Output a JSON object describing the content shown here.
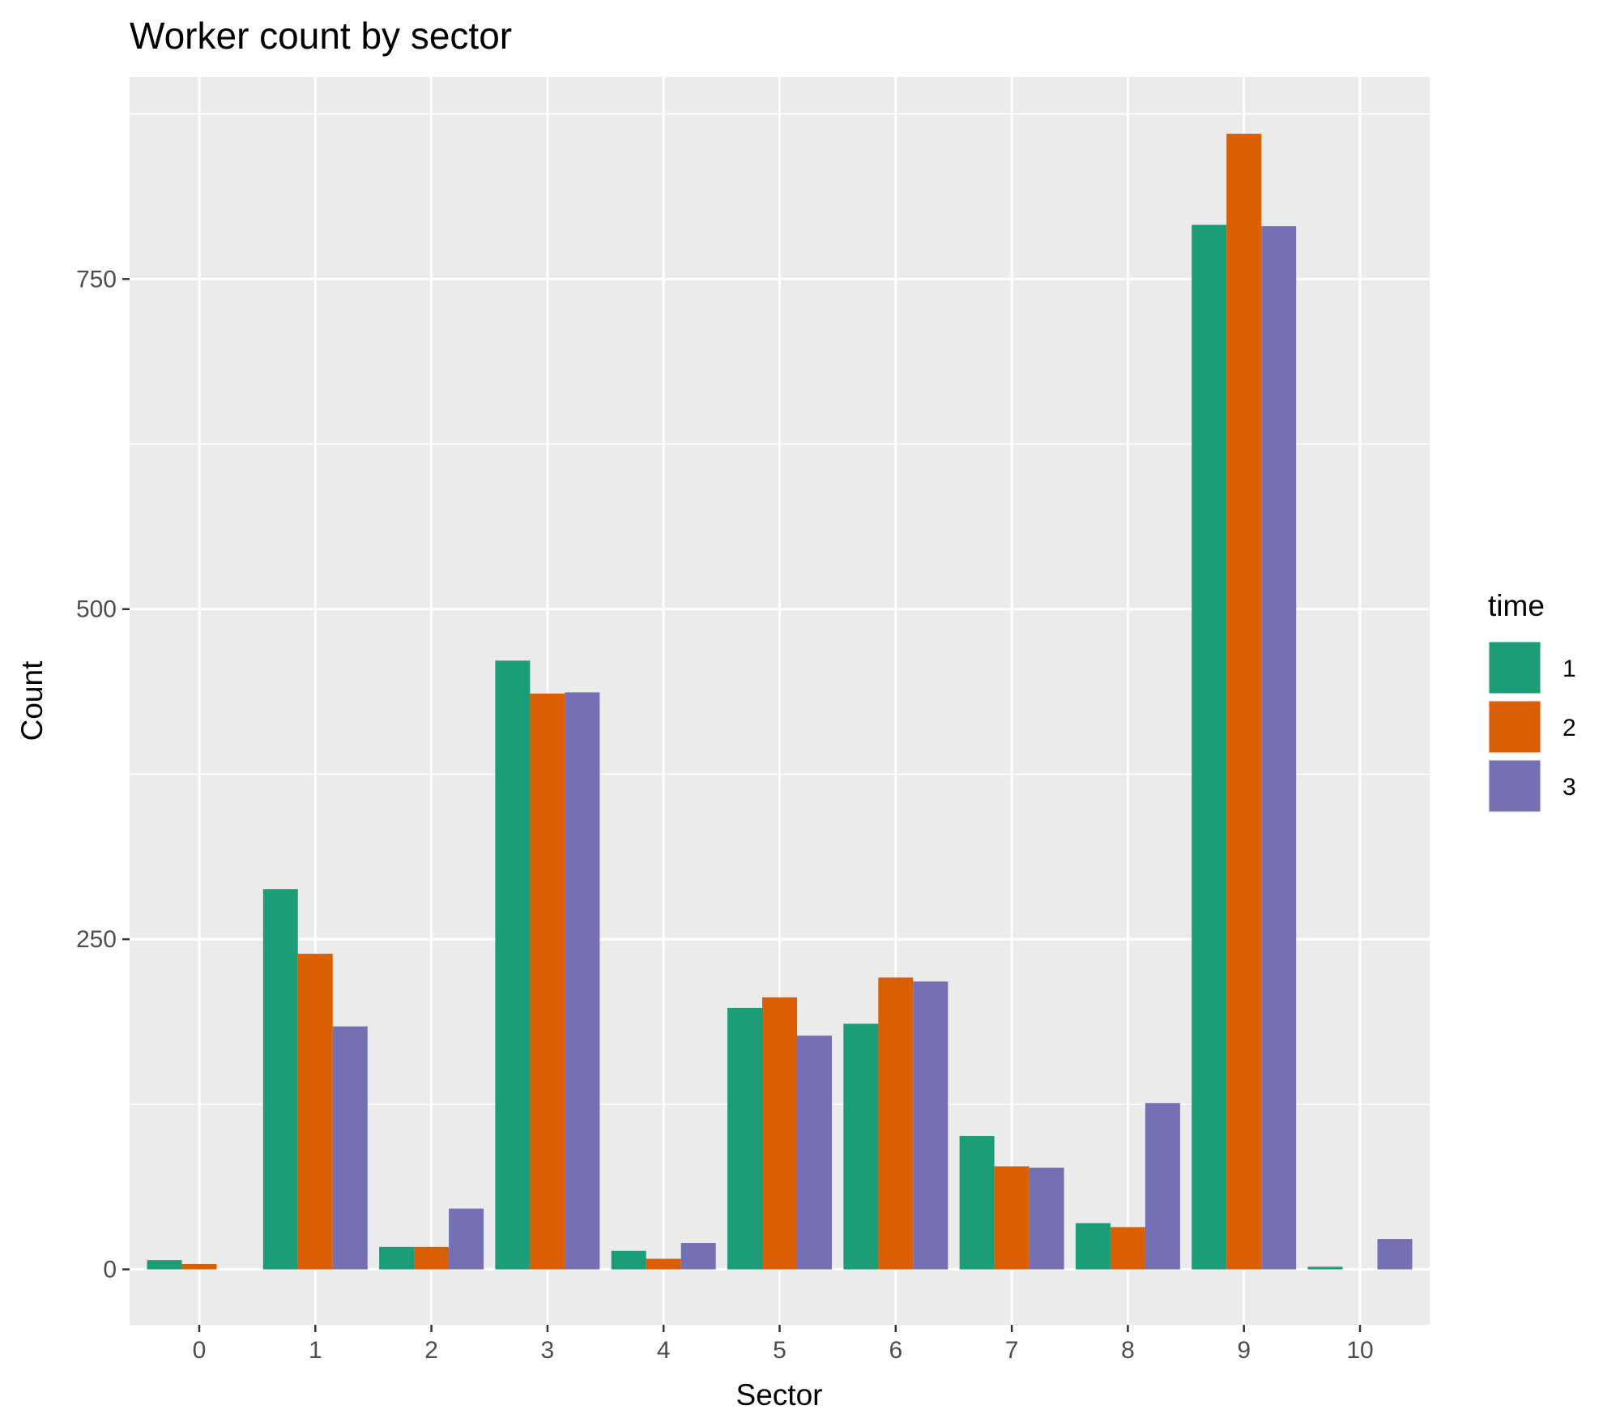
{
  "chart_data": {
    "type": "bar",
    "title": "Worker count by sector",
    "xlabel": "Sector",
    "ylabel": "Count",
    "categories": [
      "0",
      "1",
      "2",
      "3",
      "4",
      "5",
      "6",
      "7",
      "8",
      "9",
      "10"
    ],
    "series": [
      {
        "name": "1",
        "color": "#1B9E77",
        "values": [
          7,
          288,
          17,
          461,
          14,
          198,
          186,
          101,
          35,
          791,
          2
        ]
      },
      {
        "name": "2",
        "color": "#D95F02",
        "values": [
          4,
          239,
          17,
          436,
          8,
          206,
          221,
          78,
          32,
          860,
          0
        ]
      },
      {
        "name": "3",
        "color": "#7570B3",
        "values": [
          0,
          184,
          46,
          437,
          20,
          177,
          218,
          77,
          126,
          790,
          23
        ]
      }
    ],
    "ylim": [
      -42,
      903
    ],
    "yticks": [
      0,
      250,
      500,
      750
    ],
    "grid": true,
    "legend": {
      "title": "time",
      "placement": "right"
    },
    "background": "#EBEBEB",
    "gridline_color": "#FFFFFF"
  }
}
